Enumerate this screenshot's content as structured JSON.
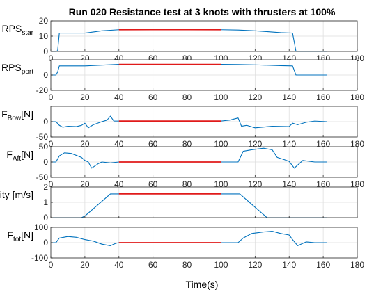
{
  "figure": {
    "title": "Run 020 Resistance test at 3 knots with thrusters at 100%",
    "xlabel": "Time(s)",
    "colors": {
      "base": "#0072BD",
      "highlight": "#E01A1A",
      "grid": "#dcdcdc",
      "axis": "#262626"
    }
  },
  "chart_data": [
    {
      "type": "line",
      "ylabel_main": "RPS",
      "ylabel_sub": "star",
      "ylabel_tail": "",
      "xlim": [
        0,
        180
      ],
      "ylim": [
        0,
        20
      ],
      "xticks": [
        0,
        20,
        40,
        60,
        80,
        100,
        120,
        140,
        160,
        180
      ],
      "yticks": [
        0,
        10,
        20
      ],
      "show_xticklabels": true,
      "series": [
        {
          "role": "full",
          "x": [
            0,
            3,
            4,
            5,
            20,
            30,
            40,
            60,
            80,
            100,
            110,
            120,
            135,
            142,
            143,
            144,
            145,
            162
          ],
          "y": [
            0,
            0,
            0.5,
            12,
            12,
            13.5,
            14.2,
            14.3,
            14.3,
            14.2,
            14.0,
            13.5,
            12.3,
            12,
            6,
            0,
            0,
            0
          ]
        },
        {
          "role": "highlight",
          "x": [
            40,
            60,
            80,
            100
          ],
          "y": [
            14.2,
            14.3,
            14.3,
            14.2
          ]
        }
      ]
    },
    {
      "type": "line",
      "ylabel_main": "RPS",
      "ylabel_sub": "port",
      "ylabel_tail": "",
      "xlim": [
        0,
        180
      ],
      "ylim": [
        -20,
        20
      ],
      "xticks": [
        0,
        20,
        40,
        60,
        80,
        100,
        120,
        140,
        160,
        180
      ],
      "yticks": [
        -20,
        0
      ],
      "show_xticklabels": true,
      "series": [
        {
          "role": "full",
          "x": [
            0,
            3,
            4,
            5,
            20,
            30,
            40,
            60,
            80,
            100,
            110,
            120,
            135,
            142,
            143,
            144,
            145,
            162
          ],
          "y": [
            0,
            0,
            4,
            12,
            12,
            13,
            14,
            14,
            14,
            14,
            13.8,
            13.4,
            12.3,
            12,
            6,
            0,
            0,
            0
          ]
        },
        {
          "role": "highlight",
          "x": [
            40,
            60,
            80,
            100
          ],
          "y": [
            14,
            14,
            14,
            14
          ]
        }
      ]
    },
    {
      "type": "line",
      "ylabel_main": "F",
      "ylabel_sub": "Bow",
      "ylabel_tail": "[N]",
      "xlim": [
        0,
        180
      ],
      "ylim": [
        -50,
        50
      ],
      "xticks": [
        0,
        20,
        40,
        60,
        80,
        100,
        120,
        140,
        160,
        180
      ],
      "yticks": [
        -50,
        0
      ],
      "show_xticklabels": true,
      "series": [
        {
          "role": "full",
          "x": [
            0,
            3,
            5,
            7,
            10,
            15,
            18,
            20,
            22,
            25,
            30,
            33,
            35,
            37,
            40,
            60,
            80,
            100,
            105,
            110,
            112,
            115,
            120,
            130,
            140,
            142,
            145,
            150,
            155,
            162
          ],
          "y": [
            0,
            0,
            -12,
            -18,
            -15,
            -16,
            -12,
            -5,
            -20,
            -10,
            0,
            5,
            18,
            2,
            2,
            2,
            2,
            2,
            5,
            12,
            -15,
            -12,
            -20,
            -15,
            -16,
            -5,
            -10,
            -2,
            2,
            0
          ]
        },
        {
          "role": "highlight",
          "x": [
            40,
            60,
            80,
            100
          ],
          "y": [
            2,
            2,
            2,
            2
          ]
        }
      ]
    },
    {
      "type": "line",
      "ylabel_main": "F",
      "ylabel_sub": "Aft",
      "ylabel_tail": "[N]",
      "xlim": [
        0,
        180
      ],
      "ylim": [
        -50,
        50
      ],
      "xticks": [
        0,
        20,
        40,
        60,
        80,
        100,
        120,
        140,
        160,
        180
      ],
      "yticks": [
        -50,
        0,
        50
      ],
      "show_xticklabels": true,
      "series": [
        {
          "role": "full",
          "x": [
            0,
            3,
            5,
            8,
            12,
            18,
            20,
            22,
            24,
            28,
            30,
            35,
            40,
            60,
            80,
            100,
            105,
            110,
            113,
            118,
            125,
            130,
            133,
            137,
            140,
            143,
            148,
            155,
            162
          ],
          "y": [
            0,
            0,
            20,
            30,
            28,
            15,
            5,
            0,
            -20,
            -5,
            0,
            -3,
            0,
            0,
            0,
            0,
            0,
            0,
            35,
            40,
            45,
            40,
            15,
            8,
            2,
            -20,
            5,
            0,
            0
          ]
        },
        {
          "role": "highlight",
          "x": [
            40,
            60,
            80,
            100
          ],
          "y": [
            0,
            0,
            0,
            0
          ]
        }
      ]
    },
    {
      "type": "line",
      "ylabel_main": "Vessel Velocity [m/s]",
      "ylabel_sub": "",
      "ylabel_tail": "",
      "xlim": [
        0,
        180
      ],
      "ylim": [
        0,
        2
      ],
      "xticks": [
        0,
        20,
        40,
        60,
        80,
        100,
        120,
        140,
        160,
        180
      ],
      "yticks": [
        0,
        1,
        2
      ],
      "show_xticklabels": false,
      "series": [
        {
          "role": "full",
          "x": [
            0,
            18,
            20,
            35,
            40,
            60,
            80,
            100,
            111,
            127,
            140,
            162
          ],
          "y": [
            0,
            0,
            0.1,
            1.55,
            1.55,
            1.55,
            1.55,
            1.55,
            1.55,
            0,
            0,
            0
          ]
        },
        {
          "role": "highlight",
          "x": [
            40,
            60,
            80,
            100
          ],
          "y": [
            1.55,
            1.55,
            1.55,
            1.55
          ]
        }
      ]
    },
    {
      "type": "line",
      "ylabel_main": "F",
      "ylabel_sub": "tot",
      "ylabel_tail": "[N]",
      "xlim": [
        0,
        180
      ],
      "ylim": [
        -100,
        100
      ],
      "xticks": [
        0,
        20,
        40,
        60,
        80,
        100,
        120,
        140,
        160,
        180
      ],
      "yticks": [
        -100,
        0,
        100
      ],
      "show_xticklabels": true,
      "series": [
        {
          "role": "full",
          "x": [
            0,
            3,
            5,
            10,
            15,
            20,
            25,
            30,
            35,
            38,
            40,
            60,
            80,
            100,
            110,
            113,
            118,
            125,
            130,
            135,
            140,
            142,
            145,
            150,
            155,
            162
          ],
          "y": [
            0,
            0,
            30,
            40,
            35,
            20,
            10,
            -10,
            -20,
            -5,
            0,
            0,
            0,
            0,
            0,
            30,
            60,
            70,
            75,
            60,
            50,
            20,
            -20,
            5,
            0,
            0
          ]
        },
        {
          "role": "highlight",
          "x": [
            40,
            60,
            80,
            100
          ],
          "y": [
            0,
            0,
            0,
            0
          ]
        }
      ]
    }
  ]
}
